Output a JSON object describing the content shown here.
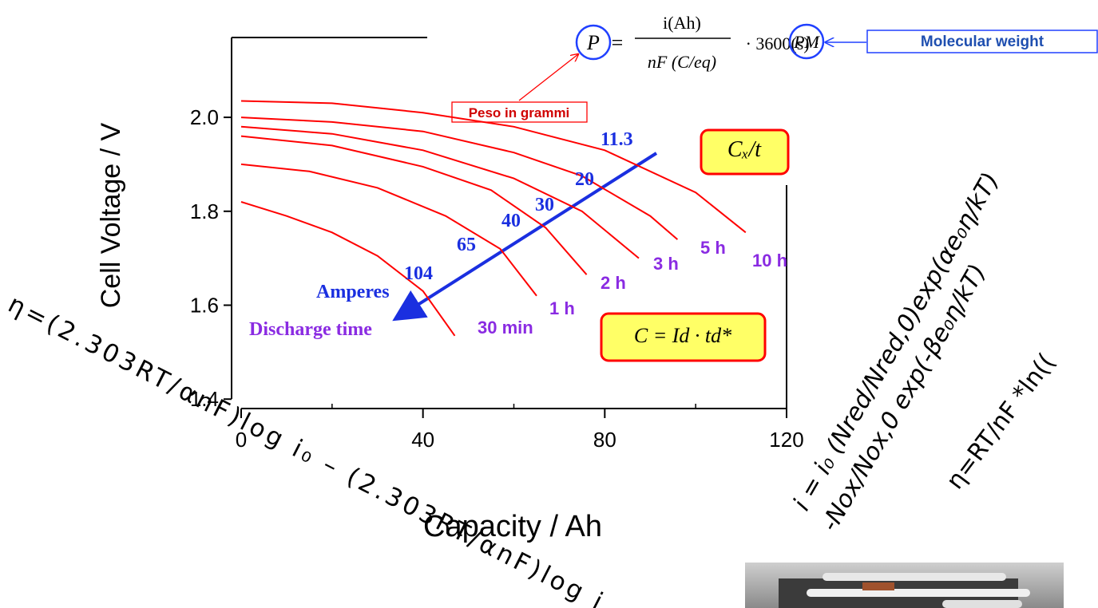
{
  "chart_data": {
    "type": "line",
    "y_label": "Cell Voltage / V",
    "x_label": "Capacity / Ah",
    "xlim": [
      -2,
      120
    ],
    "ylim": [
      1.38,
      2.17
    ],
    "xticks": [
      0,
      40,
      80,
      120
    ],
    "xminor": [
      20,
      60,
      100
    ],
    "yticks": [
      1.4,
      1.6,
      1.8,
      {
        "value": 2,
        "label": "2.0"
      }
    ],
    "series": [
      {
        "name": "10 h",
        "color": "#ff0000",
        "x": [
          0,
          20,
          40,
          60,
          80,
          100,
          111
        ],
        "values": [
          2.035,
          2.03,
          2.01,
          1.98,
          1.93,
          1.84,
          1.755
        ]
      },
      {
        "name": "5 h",
        "color": "#ff0000",
        "x": [
          0,
          20,
          40,
          60,
          75,
          90,
          96
        ],
        "values": [
          2.0,
          1.99,
          1.97,
          1.925,
          1.875,
          1.79,
          1.74
        ]
      },
      {
        "name": "3 h",
        "color": "#ff0000",
        "x": [
          0,
          20,
          40,
          60,
          75,
          87.5
        ],
        "values": [
          1.98,
          1.965,
          1.93,
          1.87,
          1.8,
          1.7
        ]
      },
      {
        "name": "2 h",
        "color": "#ff0000",
        "x": [
          0,
          20,
          40,
          55,
          67,
          76
        ],
        "values": [
          1.96,
          1.94,
          1.895,
          1.845,
          1.765,
          1.665
        ]
      },
      {
        "name": "1 h",
        "color": "#ff0000",
        "x": [
          0,
          15,
          30,
          45,
          57,
          65
        ],
        "values": [
          1.9,
          1.885,
          1.85,
          1.79,
          1.72,
          1.62
        ]
      },
      {
        "name": "30 min",
        "color": "#ff0000",
        "x": [
          0,
          10,
          20,
          30,
          40,
          47
        ],
        "values": [
          1.82,
          1.79,
          1.755,
          1.705,
          1.63,
          1.535
        ]
      }
    ],
    "amperes": [
      "11.3",
      "20",
      "30",
      "40",
      "65",
      "104"
    ],
    "amperes_label": "Amperes",
    "discharge_label": "Discharge time",
    "box_rate": "Cₓ/t",
    "box_capacity": "C = Id · td*"
  },
  "formula": {
    "lhs": "P",
    "equals": "=",
    "numerator": "i(Ah)",
    "denominator": "nF (C/eq)",
    "factor": "· 3600(s) ·",
    "rhs": "PM"
  },
  "note_weight": "Peso in grammi",
  "note_molecular": "Molecular weight",
  "tafel": "η=(2.303RT/αnF)log i₀ – (2.303RT/αnF)log i",
  "butler_volmer": [
    "i = i₀ (Nred/Nred,0)exp(αe₀η/kT)",
    "-Nox/Nox,0 exp(-βe₀η/kT)"
  ],
  "nernst": "η=RT/nF *ln(("
}
